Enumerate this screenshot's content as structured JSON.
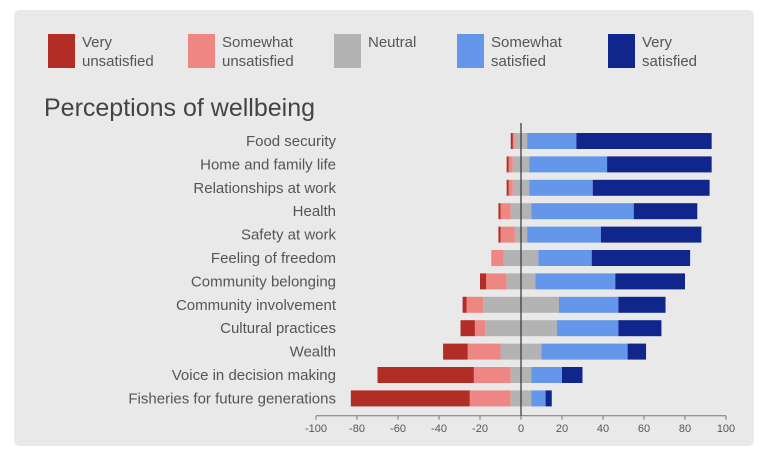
{
  "chart_data": {
    "type": "bar",
    "orientation": "horizontal",
    "stacked": "diverging",
    "title": "Perceptions of wellbeing",
    "xlim": [
      -100,
      100
    ],
    "xticks": [
      -100,
      -80,
      -60,
      -40,
      -20,
      0,
      20,
      40,
      60,
      80,
      100
    ],
    "grid": false,
    "legend_position": "top",
    "categories": [
      "Food security",
      "Home and family life",
      "Relationships at work",
      "Health",
      "Safety at work",
      "Feeling of freedom",
      "Community belonging",
      "Community involvement",
      "Cultural practices",
      "Wealth",
      "Voice in decision making",
      "Fisheries for future generations"
    ],
    "series": [
      {
        "name": "Very unsatisfied",
        "legend_lines": [
          "Very",
          "unsatisfied"
        ],
        "color": "#b32d27",
        "side": "negative",
        "values": [
          1,
          1,
          1,
          1,
          1,
          0,
          3,
          2,
          7,
          12,
          47,
          58
        ]
      },
      {
        "name": "Somewhat unsatisfied",
        "legend_lines": [
          "Somewhat",
          "unsatisfied"
        ],
        "color": "#ee8683",
        "side": "negative",
        "values": [
          1,
          2,
          2,
          5,
          7,
          6,
          10,
          8,
          5,
          16,
          18,
          20
        ]
      },
      {
        "name": "Neutral",
        "legend_lines": [
          "Neutral"
        ],
        "color": "#b3b3b3",
        "side": "center",
        "values": [
          6,
          8,
          8,
          10,
          6,
          17,
          14,
          37,
          35,
          20,
          10,
          10
        ]
      },
      {
        "name": "Somewhat satisfied",
        "legend_lines": [
          "Somewhat",
          "satisfied"
        ],
        "color": "#6496ea",
        "side": "positive",
        "values": [
          24,
          38,
          31,
          50,
          36,
          26,
          39,
          29,
          30,
          42,
          15,
          7
        ]
      },
      {
        "name": "Very satisfied",
        "legend_lines": [
          "Very",
          "satisfied"
        ],
        "color": "#11268d",
        "side": "positive",
        "values": [
          66,
          51,
          57,
          31,
          49,
          48,
          34,
          23,
          21,
          9,
          10,
          3
        ]
      }
    ]
  }
}
